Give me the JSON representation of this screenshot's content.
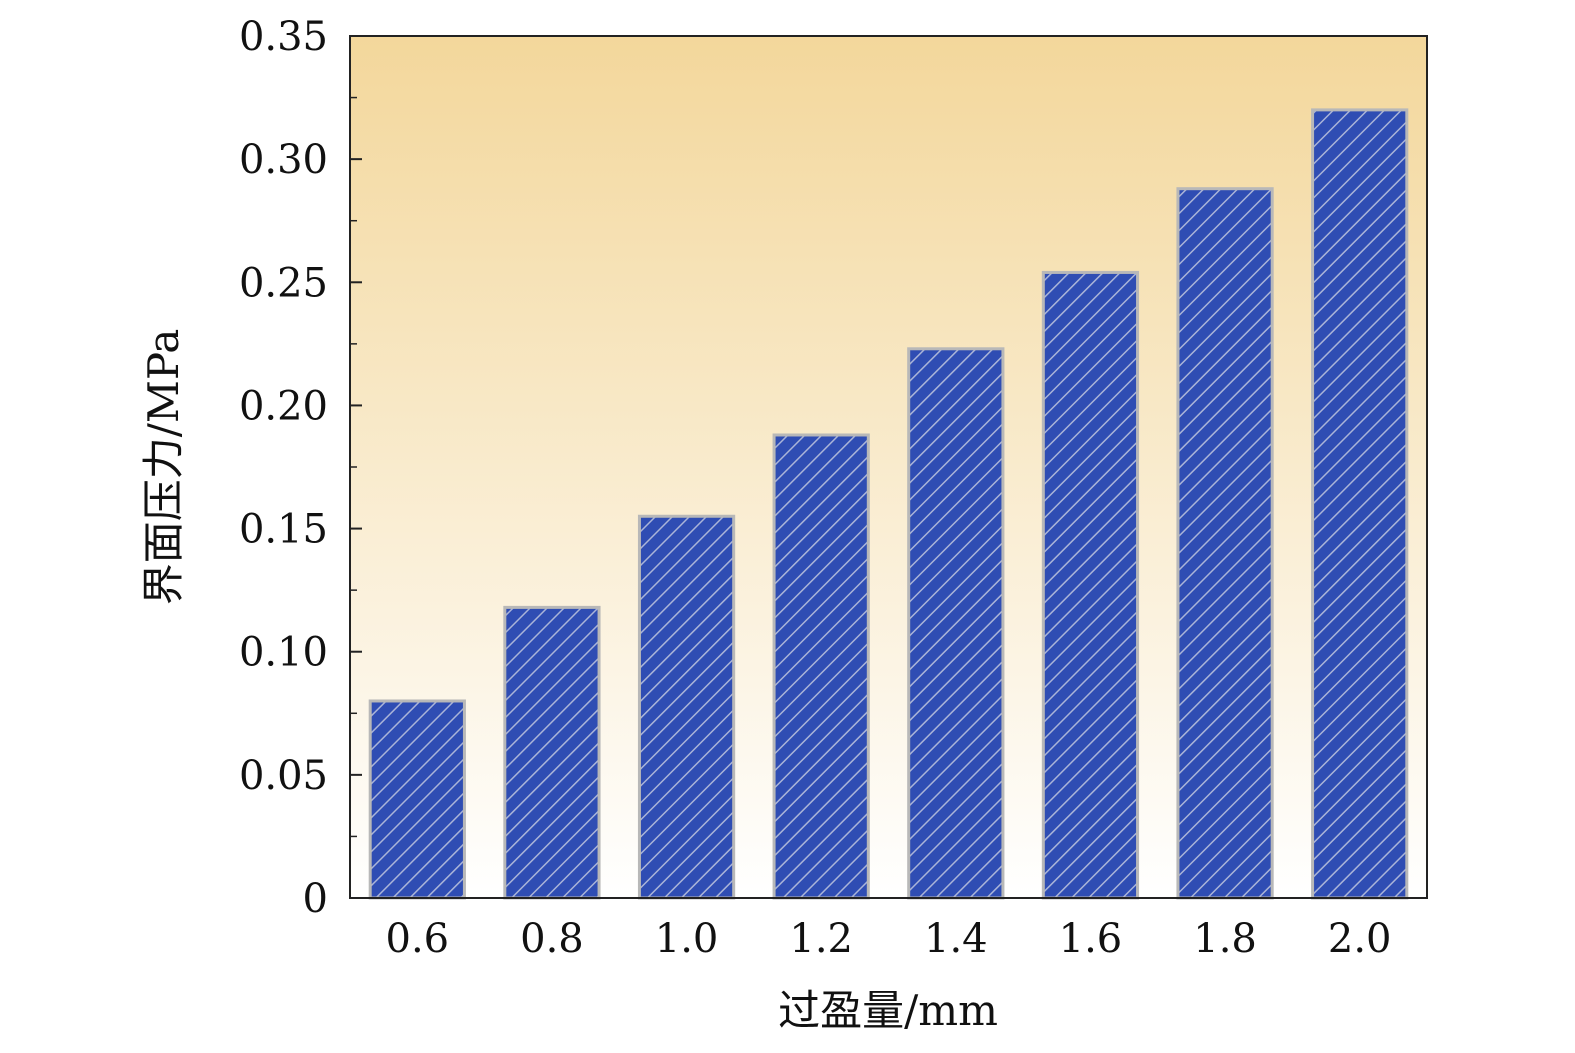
{
  "chart_data": {
    "type": "bar",
    "categories": [
      "0.6",
      "0.8",
      "1.0",
      "1.2",
      "1.4",
      "1.6",
      "1.8",
      "2.0"
    ],
    "values": [
      0.08,
      0.118,
      0.155,
      0.188,
      0.223,
      0.254,
      0.288,
      0.32
    ],
    "xlabel": "过盈量/mm",
    "ylabel": "界面压力/MPa",
    "ylim": [
      0,
      0.35
    ],
    "yticks": [
      0,
      0.05,
      0.1,
      0.15,
      0.2,
      0.25,
      0.3,
      0.35
    ],
    "ytick_labels": [
      "0",
      "0.05",
      "0.10",
      "0.15",
      "0.20",
      "0.25",
      "0.30",
      "0.35"
    ],
    "grid": false,
    "legend": "none",
    "colors": {
      "bar_fill": "#2f4db3",
      "bar_hatch": "#aab4d8",
      "bar_edge": "#b8b8b8",
      "background_top": "#f3d79b",
      "background_bottom": "#ffffff"
    }
  }
}
